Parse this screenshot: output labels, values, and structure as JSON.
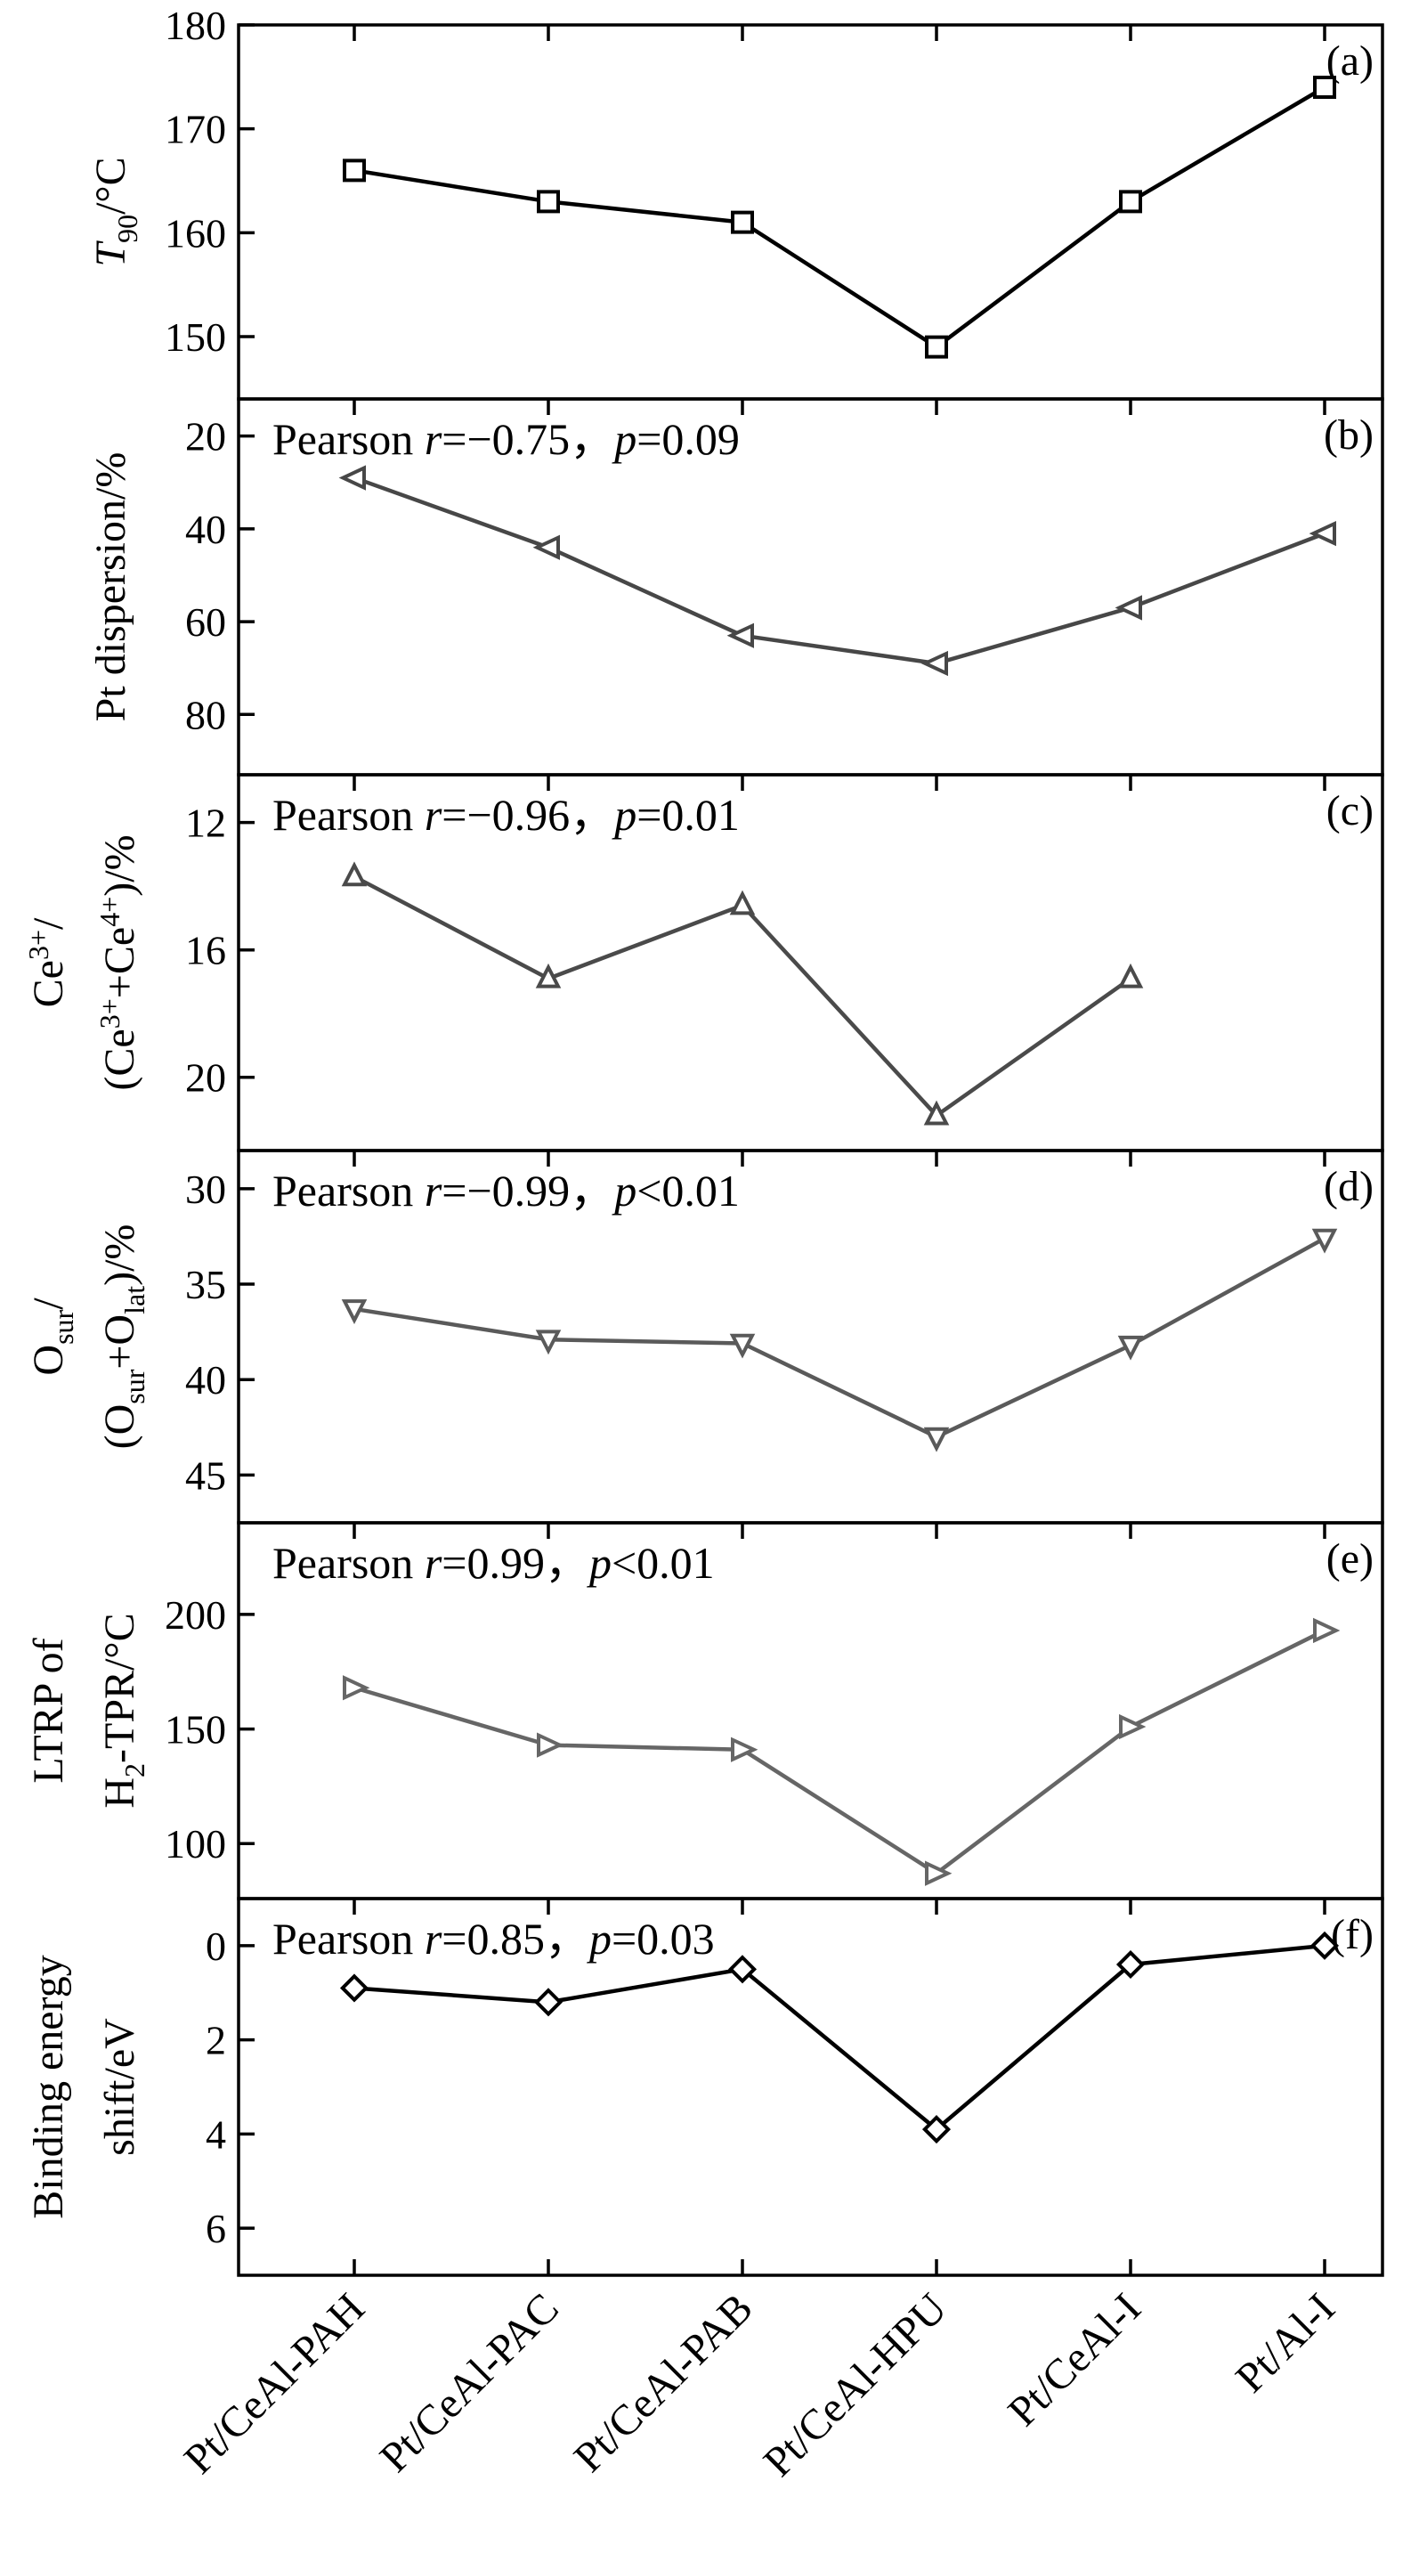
{
  "chart_data": {
    "type": "line",
    "categories": [
      "Pt/CeAl-PAH",
      "Pt/CeAl-PAC",
      "Pt/CeAl-PAB",
      "Pt/CeAl-HPU",
      "Pt/CeAl-I",
      "Pt/Al-I"
    ],
    "panels": [
      {
        "tag": "(a)",
        "ylabel_parts": [
          "T",
          "90",
          "/°C"
        ],
        "stat": null,
        "ylim": [
          144,
          180
        ],
        "yticks": [
          150,
          160,
          170,
          180
        ],
        "ytick_labels": [
          "150",
          "160",
          "170",
          "180"
        ],
        "reversed": false,
        "marker": "square",
        "color": "#000000",
        "values": [
          166,
          163,
          161,
          149,
          163,
          174
        ]
      },
      {
        "tag": "(b)",
        "ylabel_parts": [
          "Pt dispersion/%"
        ],
        "stat": {
          "pre": "Pearson ",
          "r": "r",
          "rval": "=−0.75，",
          "p": "p",
          "pval": "=0.09"
        },
        "ylim": [
          93,
          12
        ],
        "yticks": [
          20,
          40,
          60,
          80
        ],
        "ytick_labels": [
          "20",
          "40",
          "60",
          "80"
        ],
        "reversed": true,
        "marker": "triangle-left",
        "color": "#474747",
        "values": [
          29,
          44,
          63,
          69,
          57,
          41
        ]
      },
      {
        "tag": "(c)",
        "ylabel_parts": [
          "Ce3+/",
          "(Ce3++Ce4+)/%"
        ],
        "stat": {
          "pre": "Pearson ",
          "r": "r",
          "rval": "=−0.96，",
          "p": "p",
          "pval": "=0.01"
        },
        "ylim": [
          22.3,
          10.5
        ],
        "yticks": [
          12,
          16,
          20
        ],
        "ytick_labels": [
          "12",
          "16",
          "20"
        ],
        "reversed": true,
        "marker": "triangle-up",
        "color": "#4a4a4a",
        "values": [
          13.7,
          16.9,
          14.6,
          21.2,
          16.9,
          null
        ]
      },
      {
        "tag": "(d)",
        "ylabel_parts": [
          "Osur/",
          "(Osur+Olat)/%"
        ],
        "stat": {
          "pre": "Pearson ",
          "r": "r",
          "rval": "=−0.99，",
          "p": "p",
          "pval": "<0.01"
        },
        "ylim": [
          47.5,
          28
        ],
        "yticks": [
          30,
          35,
          40,
          45
        ],
        "ytick_labels": [
          "30",
          "35",
          "40",
          "45"
        ],
        "reversed": true,
        "marker": "triangle-down",
        "color": "#5a5a5a",
        "values": [
          36.3,
          37.9,
          38.1,
          43,
          38.2,
          32.6
        ]
      },
      {
        "tag": "(e)",
        "ylabel_parts": [
          "LTRP of",
          "H2-TPR/°C"
        ],
        "stat": {
          "pre": "Pearson ",
          "r": "r",
          "rval": "=0.99，",
          "p": "p",
          "pval": "<0.01"
        },
        "ylim": [
          76,
          240
        ],
        "yticks": [
          100,
          150,
          200
        ],
        "ytick_labels": [
          "100",
          "150",
          "200"
        ],
        "reversed": false,
        "marker": "triangle-right",
        "color": "#666666",
        "values": [
          168,
          143,
          141,
          87,
          151,
          193
        ]
      },
      {
        "tag": "(f)",
        "ylabel_parts": [
          "Binding energy",
          "shift/eV"
        ],
        "stat": {
          "pre": "Pearson ",
          "r": "r",
          "rval": "=0.85，",
          "p": "p",
          "pval": "=0.03"
        },
        "ylim": [
          7,
          -1
        ],
        "yticks": [
          0,
          2,
          4,
          6
        ],
        "ytick_labels": [
          "0",
          "2",
          "4",
          "6"
        ],
        "reversed": true,
        "marker": "diamond",
        "color": "#000000",
        "values": [
          0.9,
          1.2,
          0.5,
          3.9,
          0.4,
          0
        ]
      }
    ]
  }
}
